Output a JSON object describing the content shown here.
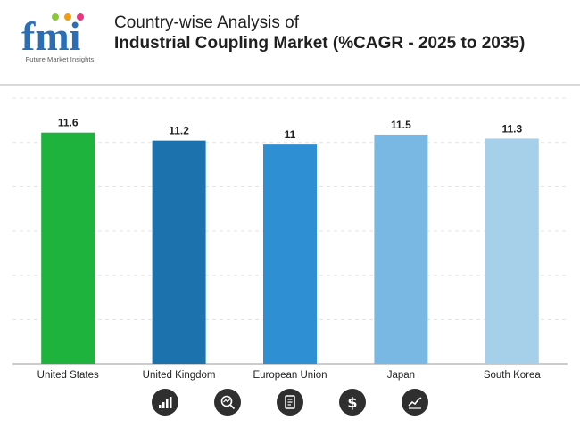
{
  "header": {
    "logo_text": "fmi",
    "logo_tagline": "Future Market Insights",
    "title_line1": "Country-wise Analysis of",
    "title_line2": "Industrial Coupling Market (%CAGR - 2025 to 2035)"
  },
  "chart_data": {
    "type": "bar",
    "title": "Country-wise Analysis of Industrial Coupling Market (%CAGR - 2025 to 2035)",
    "xlabel": "",
    "ylabel": "",
    "ylim": [
      0,
      13.6
    ],
    "grid": true,
    "categories": [
      "United States",
      "United Kingdom",
      "European Union",
      "Japan",
      "South Korea"
    ],
    "values": [
      11.6,
      11.2,
      11,
      11.5,
      11.3
    ],
    "colors": [
      "#1db33c",
      "#1b72ad",
      "#2f8fd3",
      "#79b8e3",
      "#a6d0ea"
    ]
  },
  "footer_icons": [
    "growth-chart-icon",
    "magnifier-trend-icon",
    "report-document-icon",
    "dollar-icon",
    "line-chart-icon"
  ]
}
